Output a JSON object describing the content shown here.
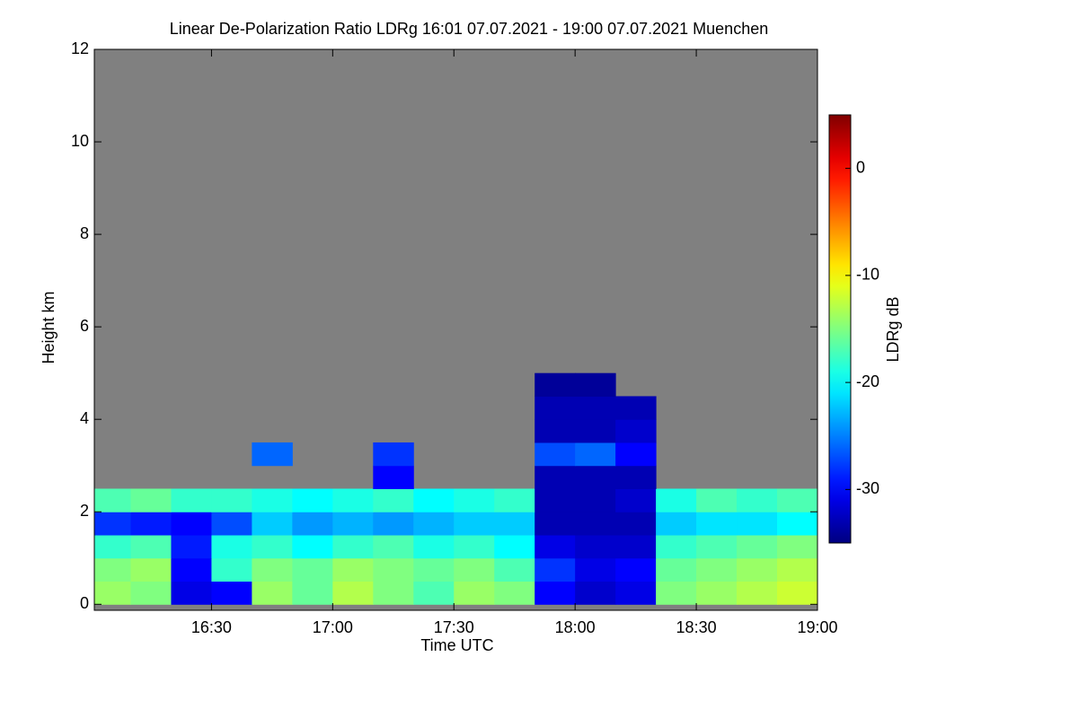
{
  "chart_data": {
    "type": "heatmap",
    "title": "Linear De-Polarization Ratio LDRg   16:01 07.07.2021 - 19:00 07.07.2021 Muenchen",
    "x_label": "Time UTC",
    "y_label": "Height km",
    "xlim": [
      961,
      1140
    ],
    "xticks": [
      {
        "value": 990,
        "label": "16:30"
      },
      {
        "value": 1020,
        "label": "17:00"
      },
      {
        "value": 1050,
        "label": "17:30"
      },
      {
        "value": 1080,
        "label": "18:00"
      },
      {
        "value": 1110,
        "label": "18:30"
      },
      {
        "value": 1140,
        "label": "19:00"
      }
    ],
    "ylim": [
      -0.13,
      12
    ],
    "yticks": [
      0,
      2,
      4,
      6,
      8,
      10,
      12
    ],
    "background": "#808080",
    "xbins": [
      961,
      970,
      980,
      990,
      1000,
      1010,
      1020,
      1030,
      1040,
      1050,
      1060,
      1070,
      1080,
      1090,
      1100,
      1110,
      1120,
      1130,
      1140
    ],
    "ybins": [
      0,
      0.5,
      1,
      1.5,
      2,
      2.5,
      3,
      3.5,
      4,
      4.5,
      5
    ],
    "z": [
      [
        -14,
        -15,
        -31,
        -30,
        -14,
        -16,
        -13,
        -15,
        -17,
        -14,
        -15,
        -30,
        -32,
        -31,
        -15,
        -14,
        -13,
        -12
      ],
      [
        -15,
        -14,
        -30,
        -18,
        -15,
        -16,
        -14,
        -15,
        -16,
        -15,
        -17,
        -28,
        -31,
        -30,
        -16,
        -15,
        -14,
        -13
      ],
      [
        -18,
        -17,
        -29,
        -19,
        -18,
        -20,
        -18,
        -17,
        -19,
        -18,
        -20,
        -31,
        -32,
        -32,
        -18,
        -17,
        -16,
        -15
      ],
      [
        -28,
        -29,
        -30,
        -27,
        -22,
        -24,
        -23,
        -24,
        -23,
        -22,
        -22,
        -33,
        -33,
        -33,
        -22,
        -21,
        -21,
        -20
      ],
      [
        -17,
        -16,
        -18,
        -18,
        -19,
        -20,
        -19,
        -18,
        -20,
        -19,
        -18,
        -33,
        -33,
        -32,
        -19,
        -17,
        -18,
        -17
      ],
      [
        null,
        null,
        null,
        null,
        null,
        null,
        null,
        -30,
        null,
        null,
        null,
        -33,
        -33,
        -33,
        null,
        null,
        null,
        null
      ],
      [
        null,
        null,
        null,
        null,
        -26,
        null,
        null,
        -28,
        null,
        null,
        null,
        -27,
        -26,
        -30,
        null,
        null,
        null,
        null
      ],
      [
        null,
        null,
        null,
        null,
        null,
        null,
        null,
        null,
        null,
        null,
        null,
        -33,
        -33,
        -32,
        null,
        null,
        null,
        null
      ],
      [
        null,
        null,
        null,
        null,
        null,
        null,
        null,
        null,
        null,
        null,
        null,
        -33,
        -33,
        -33,
        null,
        null,
        null,
        null
      ],
      [
        null,
        null,
        null,
        null,
        null,
        null,
        null,
        null,
        null,
        null,
        null,
        -34,
        -34,
        null,
        null,
        null,
        null,
        null
      ]
    ],
    "colorbar": {
      "label": "LDRg dB",
      "lim": [
        -35,
        5
      ],
      "ticks": [
        0,
        -10,
        -20,
        -30
      ],
      "colormap": "jet"
    }
  }
}
